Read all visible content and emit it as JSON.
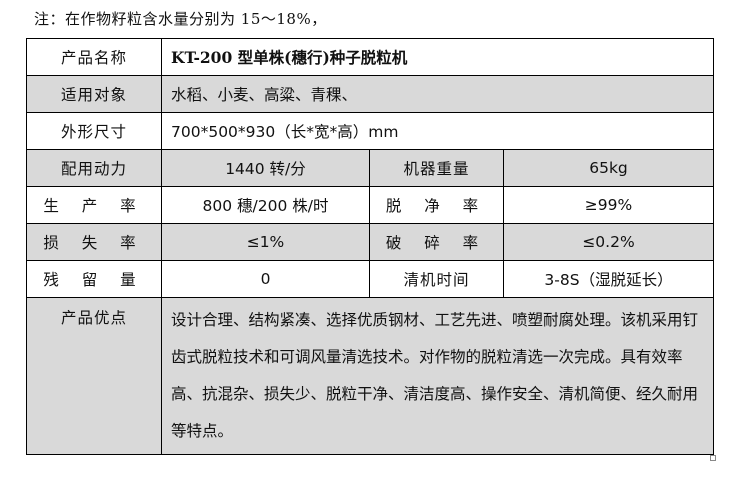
{
  "note": "注：在作物籽粒含水量分别为 15～18%，",
  "table": {
    "product_name": {
      "label": "产品名称",
      "value": "KT-200 型单株(穗行)种子脱粒机"
    },
    "applicable": {
      "label": "适用对象",
      "value": "水稻、小麦、高粱、青稞、"
    },
    "dimensions": {
      "label": "外形尺寸",
      "value": "700*500*930（长*宽*高）mm"
    },
    "power": {
      "label": "配用动力",
      "value": "1440 转/分",
      "label2": "机器重量",
      "value2": "65kg"
    },
    "productivity": {
      "label": "生 产 率",
      "value": "800 穗/200 株/时",
      "label2": "脱 净 率",
      "value2": "≥99%"
    },
    "loss": {
      "label": "损 失 率",
      "value": "≤1%",
      "label2": "破 碎 率",
      "value2": "≤0.2%"
    },
    "residue": {
      "label": "残 留 量",
      "value": "0",
      "label2": "清机时间",
      "value2": "3-8S（湿脱延长）"
    },
    "advantages": {
      "label": "产品优点",
      "value": "设计合理、结构紧凑、选择优质钢材、工艺先进、喷塑耐腐处理。该机采用钉齿式脱粒技术和可调风量清选技术。对作物的脱粒清选一次完成。具有效率高、抗混杂、损失少、脱粒干净、清洁度高、操作安全、清机简便、经久耐用等特点。"
    }
  }
}
